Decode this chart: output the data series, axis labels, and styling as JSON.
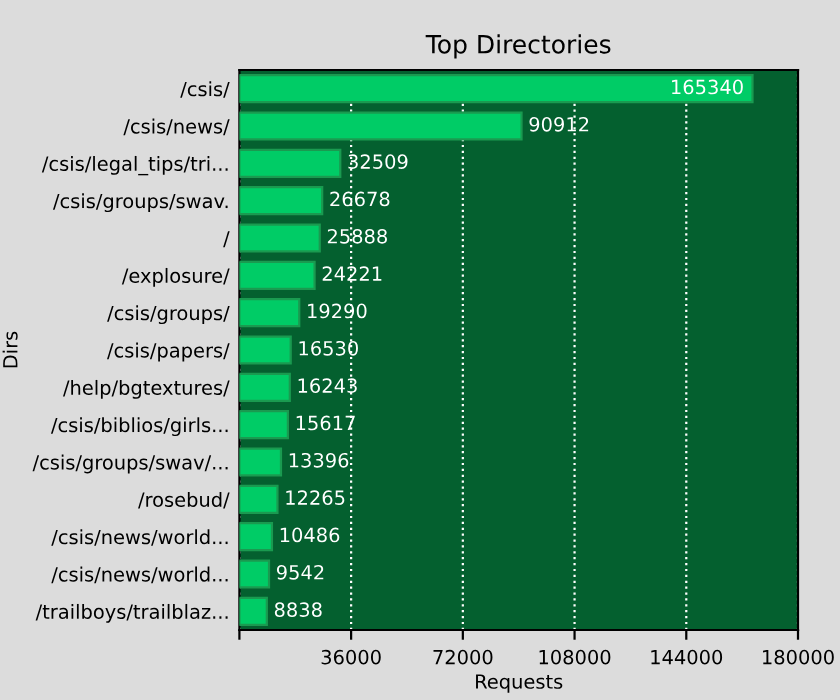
{
  "chart_data": {
    "type": "bar",
    "orientation": "horizontal",
    "title": "Top Directories",
    "xlabel": "Requests",
    "ylabel": "Dirs",
    "categories": [
      "/csis/",
      "/csis/news/",
      "/csis/legal_tips/tri...",
      "/csis/groups/swav.",
      "/",
      "/explosure/",
      "/csis/groups/",
      "/csis/papers/",
      "/help/bgtextures/",
      "/csis/biblios/girls...",
      "/csis/groups/swav/...",
      "/rosebud/",
      "/csis/news/world...",
      "/csis/news/world...",
      "/trailboys/trailblaz..."
    ],
    "values": [
      165340,
      90912,
      32509,
      26678,
      25888,
      24221,
      19290,
      16530,
      16243,
      15617,
      13396,
      12265,
      10486,
      9542,
      8838
    ],
    "color": "#00cc66",
    "data_labels": true,
    "xlim": [
      0,
      180000
    ],
    "xticks": [
      {
        "value": 0,
        "label": null
      },
      36000,
      72000,
      108000,
      144000,
      180000
    ],
    "grid": "x"
  }
}
